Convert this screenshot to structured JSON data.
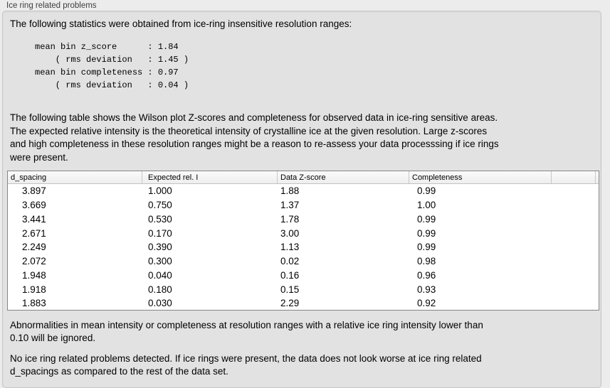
{
  "panel": {
    "label": "Ice ring related problems"
  },
  "stats": {
    "intro": "The following statistics were obtained from ice-ring insensitive resolution ranges:",
    "lines": [
      "mean bin z_score      : 1.84",
      "    ( rms deviation   : 1.45 )",
      "mean bin completeness : 0.97",
      "    ( rms deviation   : 0.04 )"
    ]
  },
  "description": {
    "lines": [
      "The following table shows the Wilson plot Z-scores and completeness for observed data in ice-ring sensitive areas.",
      "The expected relative intensity is the theoretical intensity of crystalline ice at the given resolution. Large z-scores",
      "and high completeness in these resolution ranges might be a reason to re-assess your data processsing if ice rings",
      "were present."
    ]
  },
  "table": {
    "columns": [
      "d_spacing",
      "Expected rel. I",
      "Data Z-score",
      "Completeness",
      ""
    ],
    "rows": [
      [
        "3.897",
        "1.000",
        "1.88",
        "0.99"
      ],
      [
        "3.669",
        "0.750",
        "1.37",
        "1.00"
      ],
      [
        "3.441",
        "0.530",
        "1.78",
        "0.99"
      ],
      [
        "2.671",
        "0.170",
        "3.00",
        "0.99"
      ],
      [
        "2.249",
        "0.390",
        "1.13",
        "0.99"
      ],
      [
        "2.072",
        "0.300",
        "0.02",
        "0.98"
      ],
      [
        "1.948",
        "0.040",
        "0.16",
        "0.96"
      ],
      [
        "1.918",
        "0.180",
        "0.15",
        "0.93"
      ],
      [
        "1.883",
        "0.030",
        "2.29",
        "0.92"
      ]
    ]
  },
  "notes": {
    "ignore_lines": [
      "Abnormalities in mean intensity or completeness at resolution ranges with a relative ice ring intensity lower than",
      "0.10 will be ignored."
    ],
    "conclusion_lines": [
      "No ice ring related problems detected. If ice rings were present, the data does not look worse at ice ring related",
      "d_spacings as compared to the rest of the data set."
    ]
  },
  "colors": {
    "background": "#ececec",
    "panel_background": "#e2e2e2",
    "panel_border": "#c6c6c6",
    "table_border": "#858585",
    "header_background": "#f5f5f5",
    "text": "#000000"
  }
}
